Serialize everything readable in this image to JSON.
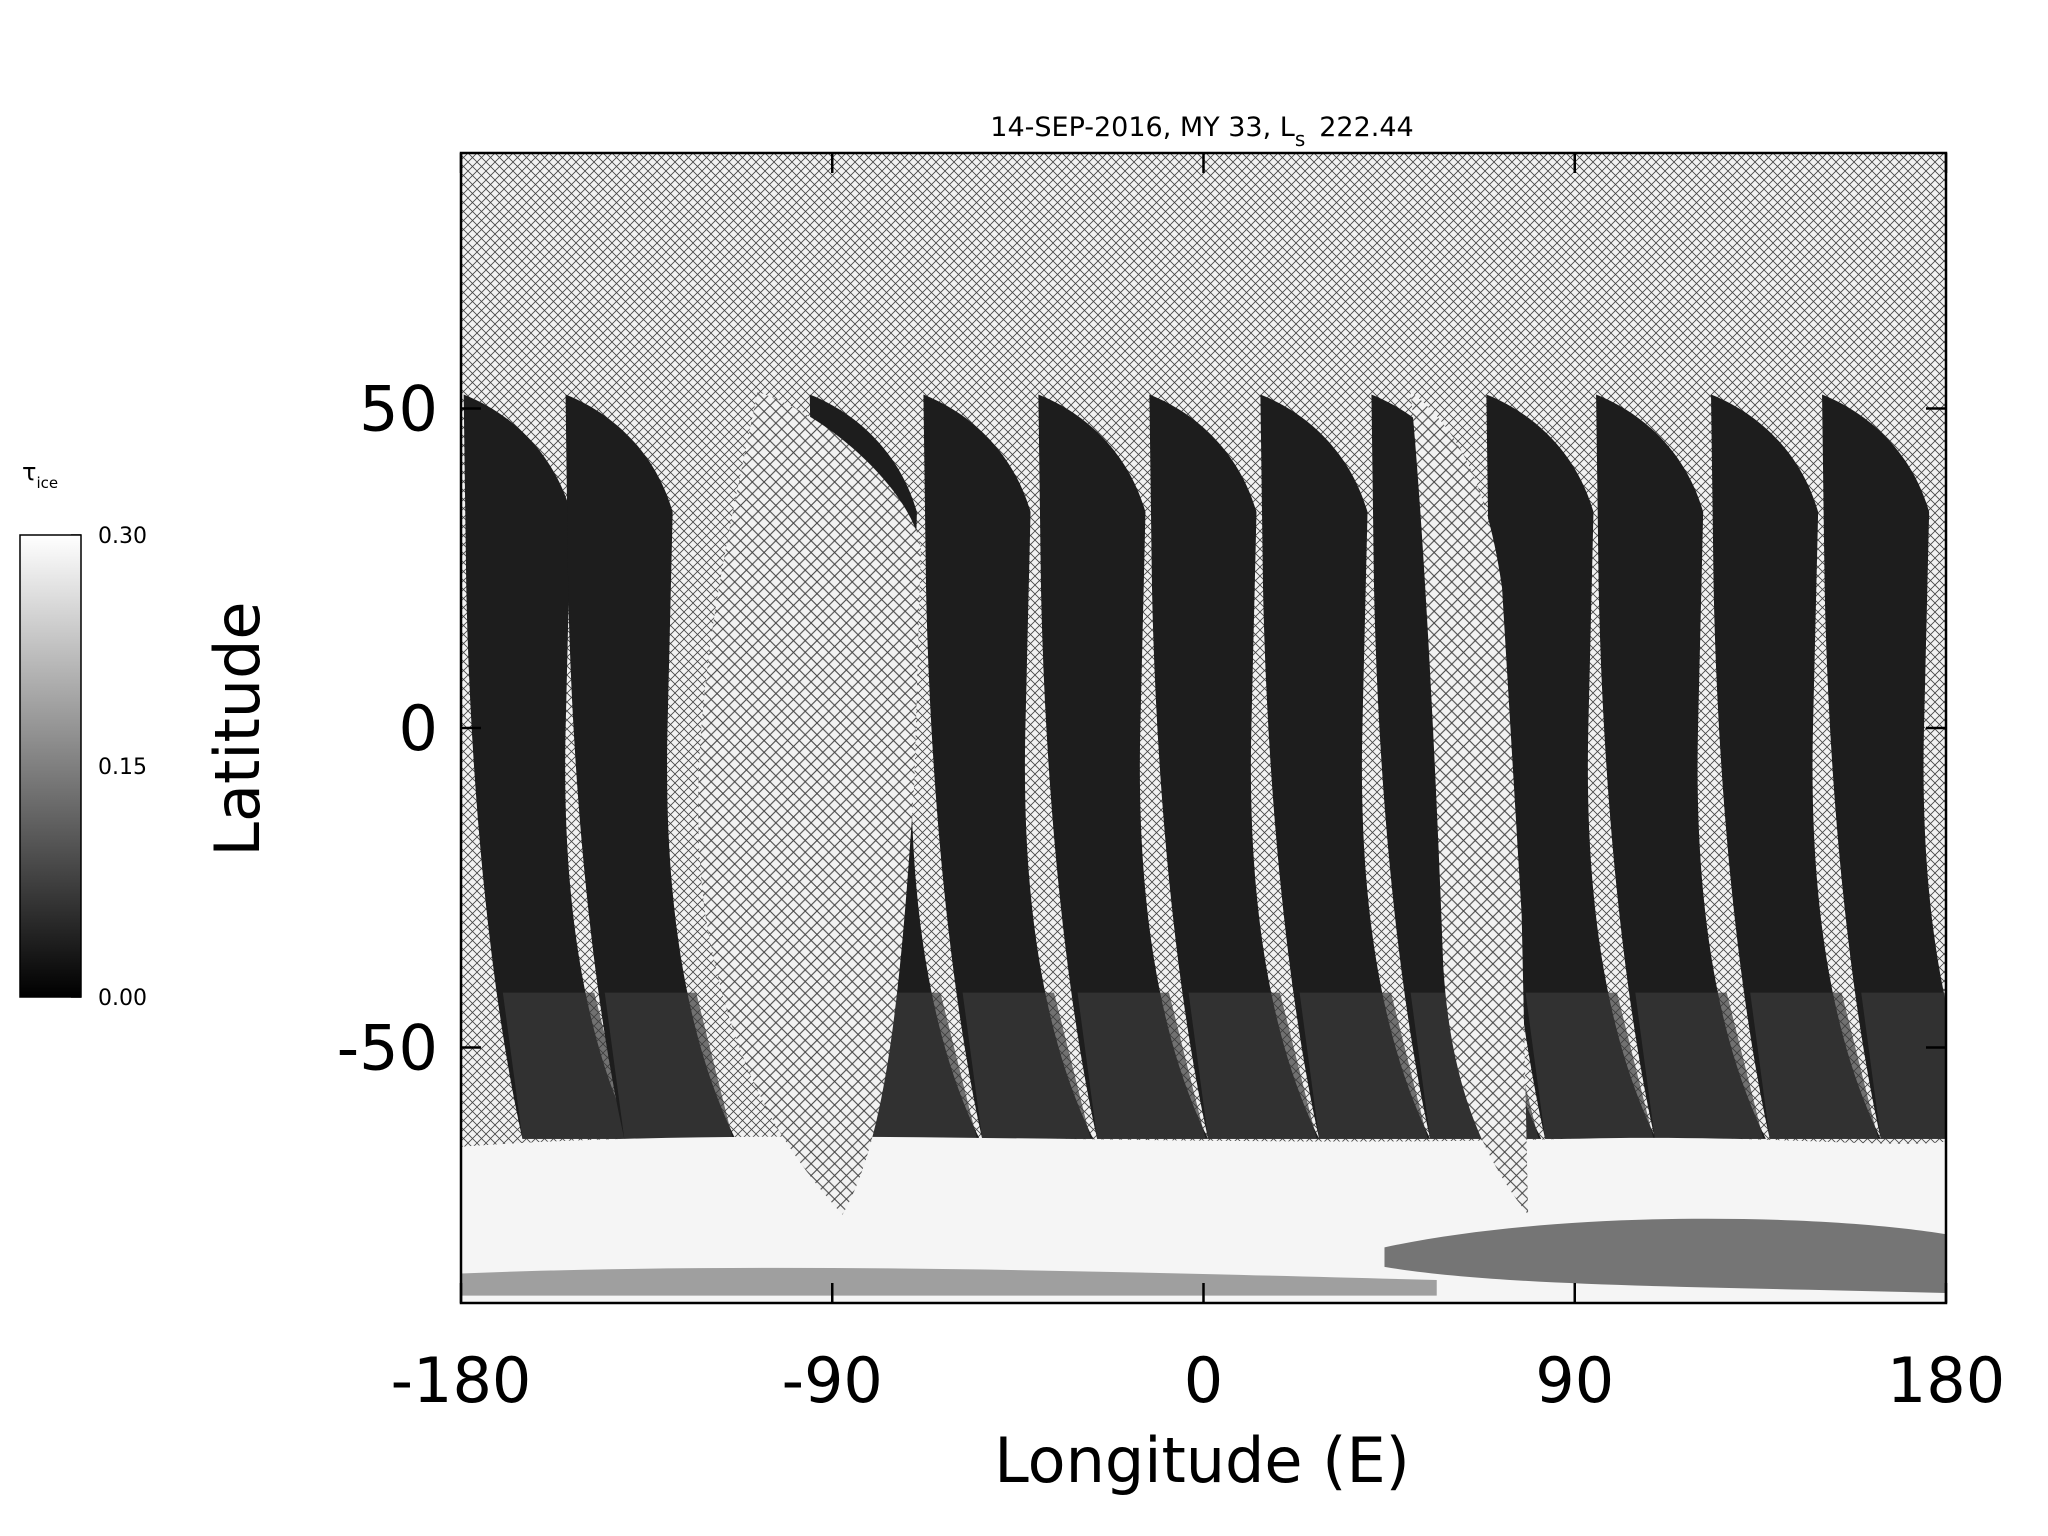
{
  "chart_data": {
    "type": "map",
    "title": "14-SEP-2016, MY 33,  L",
    "title_subscript": "s",
    "title_suffix": "222.44",
    "x_label": "Longitude (E)",
    "y_label": "Latitude",
    "xlim": [
      -180,
      180
    ],
    "xticks": [
      -180,
      -90,
      0,
      90,
      180
    ],
    "ylim": [
      -90,
      90
    ],
    "yticks": [
      -50,
      0,
      50
    ],
    "colorbar": {
      "label": "τ",
      "label_subscript": "ice",
      "lim": [
        0,
        0.3
      ],
      "ticks": [
        {
          "value": 0,
          "label": "0.00"
        },
        {
          "value": 0.15,
          "label": "0.15"
        },
        {
          "value": 0.3,
          "label": "0.30"
        }
      ],
      "colors": [
        "#000000",
        "#ffffff"
      ]
    }
  }
}
